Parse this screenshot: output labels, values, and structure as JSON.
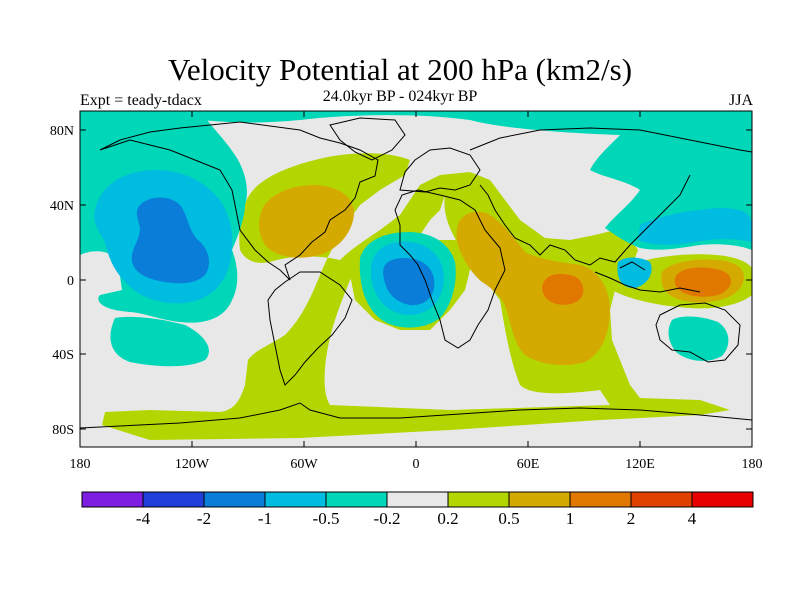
{
  "title": "Velocity Potential at 200 hPa (km2/s)",
  "left_label": "Expt = teady-tdacx",
  "center_label": "24.0kyr BP - 024kyr BP",
  "right_label": "JJA",
  "map": {
    "projection": "cylindrical equidistant",
    "lon_range": [
      -180,
      180
    ],
    "lat_range": [
      -90,
      90
    ],
    "background_color": "#e8e8e8",
    "lat_ticks": [
      "80N",
      "40N",
      "0",
      "40S",
      "80S"
    ],
    "lon_ticks": [
      "180",
      "120W",
      "60W",
      "0",
      "60E",
      "120E",
      "180"
    ],
    "contour_fields": [
      {
        "name": "n-pacific-negative",
        "level": "-0.5",
        "color": "#00c3e0",
        "center": [
          -125,
          25
        ]
      },
      {
        "name": "n-pacific-core",
        "level": "-1",
        "color": "#0096d8",
        "center": [
          -125,
          25
        ]
      },
      {
        "name": "atlantic-gulf-positive",
        "level": "0.5",
        "color": "#d4aa00",
        "center": [
          -67,
          32
        ]
      },
      {
        "name": "s-atlantic-negative",
        "level": "-0.5",
        "color": "#00c3e0",
        "center": [
          10,
          5
        ]
      },
      {
        "name": "s-atlantic-core",
        "level": "-1",
        "color": "#0096d8",
        "center": [
          10,
          2
        ]
      },
      {
        "name": "indian-ocean-positive",
        "level": "0.5",
        "color": "#d4aa00",
        "center": [
          70,
          -10
        ]
      },
      {
        "name": "indian-ocean-core",
        "level": "1",
        "color": "#e07800",
        "center": [
          80,
          -3
        ]
      },
      {
        "name": "w-pacific-positive",
        "level": "0.5",
        "color": "#d4aa00",
        "center": [
          150,
          -2
        ]
      },
      {
        "name": "w-pacific-core",
        "level": "1",
        "color": "#e07800",
        "center": [
          150,
          -2
        ]
      }
    ]
  },
  "colorbar": {
    "colors": [
      "#7d1ee0",
      "#1f3fd8",
      "#0a7dd8",
      "#00bce0",
      "#00d6b8",
      "#e8e8e8",
      "#b4d600",
      "#d4aa00",
      "#e07800",
      "#e04000",
      "#e80000"
    ],
    "labels": [
      "-4",
      "-2",
      "-1",
      "-0.5",
      "-0.2",
      "0.2",
      "0.5",
      "1",
      "2",
      "4"
    ]
  }
}
